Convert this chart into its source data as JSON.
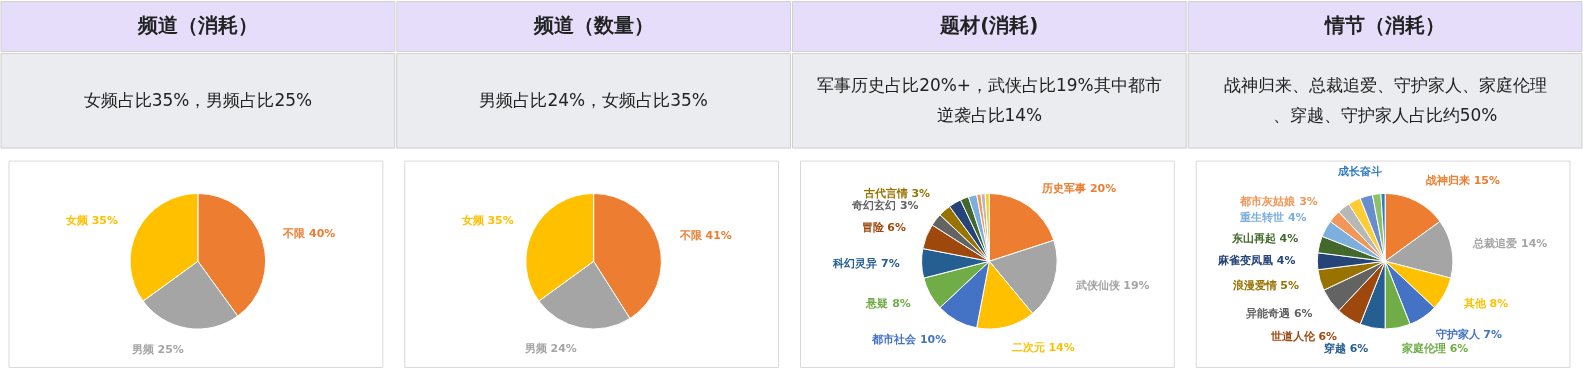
{
  "chart_data": [
    {
      "type": "pie",
      "title": "频道（消耗）",
      "annotations": [
        "女频占比35%，男频占比25%"
      ],
      "categories": [
        "不限",
        "男频",
        "女频"
      ],
      "values": [
        40,
        25,
        35
      ],
      "colors": [
        "#ed7d31",
        "#a5a5a5",
        "#ffc000"
      ],
      "value_labels": [
        "40%",
        "25%",
        "35%"
      ]
    },
    {
      "type": "pie",
      "title": "频道（数量）",
      "annotations": [
        "男频占比24%，女频占比35%"
      ],
      "categories": [
        "不限",
        "男频",
        "女频"
      ],
      "values": [
        41,
        24,
        35
      ],
      "colors": [
        "#ed7d31",
        "#a5a5a5",
        "#ffc000"
      ],
      "value_labels": [
        "41%",
        "24%",
        "35%"
      ]
    },
    {
      "type": "pie",
      "title": "题材(消耗)",
      "annotations": [
        "军事历史占比20%+，武侠占比19%其中都市逆袭占比14%"
      ],
      "categories": [
        "历史军事",
        "武侠仙侠",
        "二次元",
        "都市社会",
        "悬疑",
        "科幻灵异",
        "冒险",
        "奇幻玄幻",
        "古代言情",
        null,
        null,
        null,
        null,
        null,
        null
      ],
      "values": [
        20,
        19,
        14,
        10,
        8,
        7,
        6,
        3,
        3,
        3,
        2,
        2,
        1,
        1,
        1
      ],
      "colors": [
        "#ed7d31",
        "#a5a5a5",
        "#ffc000",
        "#4472c4",
        "#70ad47",
        "#255e91",
        "#9e480e",
        "#636363",
        "#997300",
        "#264478",
        "#43682b",
        "#7cafdd",
        "#f1975a",
        "#b7b7b7",
        "#ffcd33"
      ],
      "value_labels": [
        "20%",
        "19%",
        "14%",
        "10%",
        "8%",
        "7%",
        "6%",
        "3%",
        "3%",
        null,
        null,
        null,
        null,
        null,
        null
      ]
    },
    {
      "type": "pie",
      "title": "情节（消耗）",
      "annotations": [
        "战神归来、总裁追爱、守护家人、家庭伦理、穿越、守护家人占比约50%"
      ],
      "categories": [
        "战神归来",
        "总裁追爱",
        "其他",
        "守护家人",
        "家庭伦理",
        "穿越",
        "世道人伦",
        "异能奇遇",
        "浪漫爱情",
        "麻雀变凤凰",
        "东山再起",
        "重生转世",
        "都市灰姑娘",
        null,
        null,
        null,
        null,
        "成长奋斗"
      ],
      "values": [
        15,
        14,
        8,
        7,
        6,
        6,
        6,
        6,
        5,
        4,
        4,
        4,
        3,
        3,
        3,
        3,
        2,
        1
      ],
      "colors": [
        "#ed7d31",
        "#a5a5a5",
        "#ffc000",
        "#4472c4",
        "#70ad47",
        "#255e91",
        "#9e480e",
        "#636363",
        "#997300",
        "#264478",
        "#43682b",
        "#7cafdd",
        "#f1975a",
        "#b7b7b7",
        "#ffcd33",
        "#698ed0",
        "#8cc168",
        "#327dc2"
      ],
      "value_labels": [
        "15%",
        "14%",
        "8%",
        "7%",
        "6%",
        "6%",
        "6%",
        "6%",
        "5%",
        "4%",
        "4%",
        "4%",
        "3%",
        null,
        null,
        null,
        null,
        null
      ]
    }
  ]
}
